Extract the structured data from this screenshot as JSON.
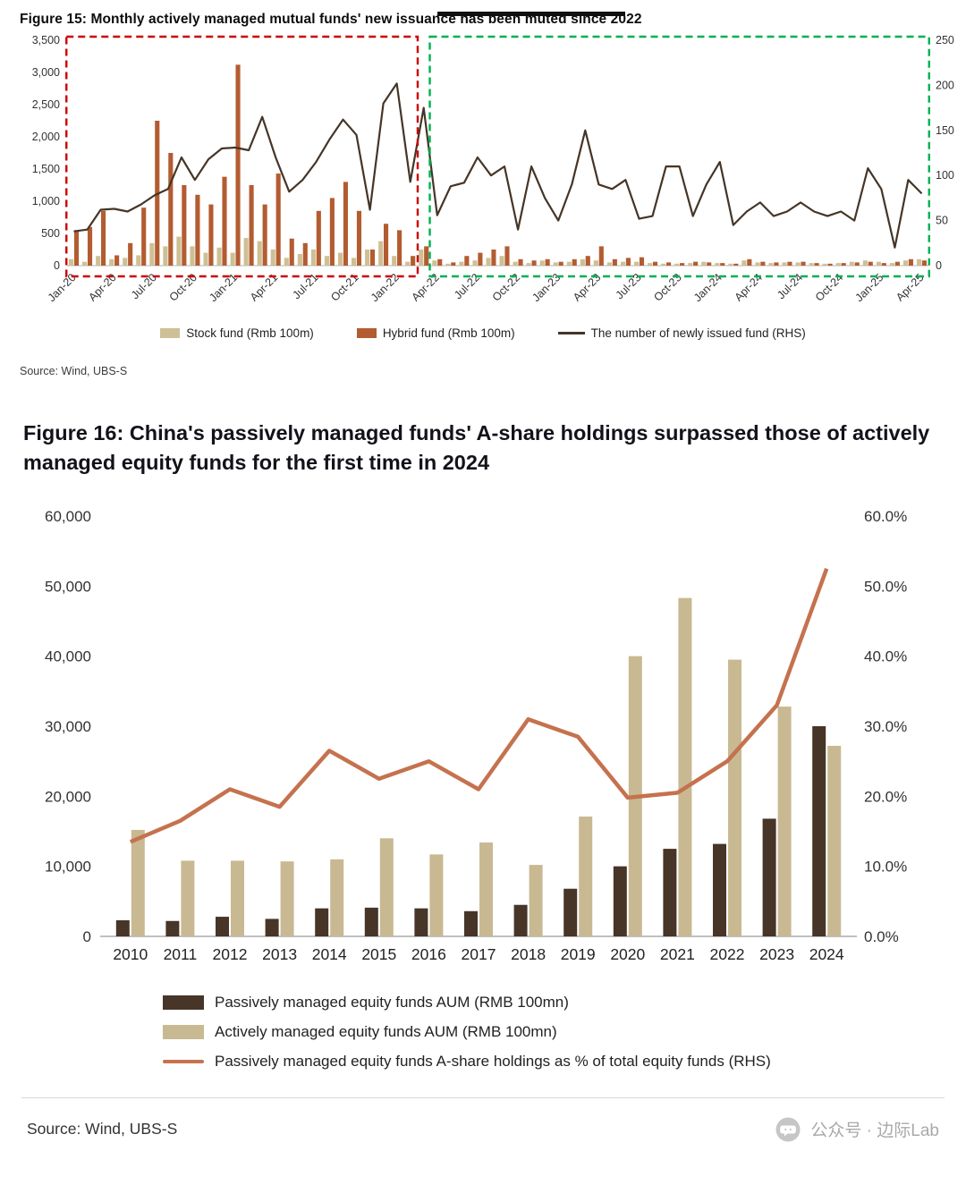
{
  "page": {
    "watermark_text": "公众号 · 边际Lab"
  },
  "fig15": {
    "title": "Figure 15: Monthly actively managed mutual funds' new issuance has been muted since 2022",
    "source": "Source: Wind, UBS-S"
  },
  "fig16": {
    "title": "Figure 16: China's passively managed funds' A-share holdings surpassed those of actively managed equity funds for the first time in 2024",
    "source": "Source: Wind, UBS-S"
  },
  "chart_data": [
    {
      "id": "fig15",
      "type": "bar+line",
      "title": "Figure 15: Monthly actively managed mutual funds' new issuance has been muted since 2022",
      "x": [
        "Jan-20",
        "Feb-20",
        "Mar-20",
        "Apr-20",
        "May-20",
        "Jun-20",
        "Jul-20",
        "Aug-20",
        "Sep-20",
        "Oct-20",
        "Nov-20",
        "Dec-20",
        "Jan-21",
        "Feb-21",
        "Mar-21",
        "Apr-21",
        "May-21",
        "Jun-21",
        "Jul-21",
        "Aug-21",
        "Sep-21",
        "Oct-21",
        "Nov-21",
        "Dec-21",
        "Jan-22",
        "Feb-22",
        "Mar-22",
        "Apr-22",
        "May-22",
        "Jun-22",
        "Jul-22",
        "Aug-22",
        "Sep-22",
        "Oct-22",
        "Nov-22",
        "Dec-22",
        "Jan-23",
        "Feb-23",
        "Mar-23",
        "Apr-23",
        "May-23",
        "Jun-23",
        "Jul-23",
        "Aug-23",
        "Sep-23",
        "Oct-23",
        "Nov-23",
        "Dec-23",
        "Jan-24",
        "Feb-24",
        "Mar-24",
        "Apr-24",
        "May-24",
        "Jun-24",
        "Jul-24",
        "Aug-24",
        "Sep-24",
        "Oct-24",
        "Nov-24",
        "Dec-24",
        "Jan-25",
        "Feb-25",
        "Mar-25",
        "Apr-25"
      ],
      "x_tick_every": 3,
      "left_axis": {
        "min": 0,
        "max": 3500,
        "tick_step": 500
      },
      "right_axis": {
        "min": 0,
        "max": 250,
        "tick_step": 50
      },
      "series": [
        {
          "name": "Stock fund (Rmb 100m)",
          "type": "bar",
          "axis": "left",
          "color": "#cec095",
          "values": [
            100,
            60,
            150,
            100,
            120,
            160,
            350,
            300,
            450,
            300,
            200,
            280,
            200,
            430,
            380,
            250,
            120,
            180,
            250,
            150,
            200,
            120,
            250,
            380,
            150,
            60,
            250,
            80,
            30,
            60,
            80,
            120,
            150,
            60,
            40,
            80,
            50,
            60,
            100,
            80,
            50,
            60,
            60,
            40,
            30,
            30,
            40,
            60,
            40,
            30,
            80,
            50,
            40,
            50,
            50,
            40,
            30,
            40,
            60,
            80,
            60,
            40,
            80,
            100
          ]
        },
        {
          "name": "Hybrid fund (Rmb 100m)",
          "type": "bar",
          "axis": "left",
          "color": "#b35c31",
          "values": [
            550,
            600,
            850,
            160,
            350,
            900,
            2250,
            1750,
            1250,
            1100,
            950,
            1380,
            3120,
            1250,
            950,
            1430,
            420,
            350,
            850,
            1050,
            1300,
            850,
            250,
            650,
            550,
            150,
            300,
            100,
            50,
            150,
            200,
            250,
            300,
            100,
            80,
            100,
            60,
            100,
            150,
            300,
            100,
            120,
            130,
            60,
            50,
            40,
            60,
            50,
            40,
            30,
            100,
            60,
            50,
            60,
            60,
            40,
            30,
            40,
            50,
            60,
            40,
            60,
            100,
            80
          ]
        },
        {
          "name": "The number of newly issued fund (RHS)",
          "type": "line",
          "axis": "right",
          "color": "#453527",
          "values": [
            38,
            40,
            62,
            63,
            60,
            68,
            78,
            85,
            120,
            95,
            118,
            130,
            131,
            128,
            165,
            120,
            82,
            95,
            115,
            140,
            162,
            145,
            62,
            180,
            202,
            93,
            175,
            56,
            88,
            92,
            120,
            100,
            110,
            40,
            110,
            75,
            50,
            90,
            150,
            90,
            85,
            95,
            52,
            55,
            110,
            110,
            55,
            90,
            115,
            45,
            60,
            70,
            55,
            60,
            70,
            60,
            55,
            60,
            50,
            108,
            85,
            20,
            95,
            80
          ]
        }
      ],
      "annotations": [
        {
          "type": "dashed-box",
          "color": "#cc0000",
          "from_month": "Jan-20",
          "to_month": "Feb-22"
        },
        {
          "type": "dashed-box",
          "color": "#00b050",
          "from_month": "Apr-22",
          "to_month": "Apr-25"
        }
      ]
    },
    {
      "id": "fig16",
      "type": "bar+line",
      "title": "Figure 16: China's passively managed funds' A-share holdings surpassed those of actively managed equity funds for the first time in 2024",
      "categories": [
        "2010",
        "2011",
        "2012",
        "2013",
        "2014",
        "2015",
        "2016",
        "2017",
        "2018",
        "2019",
        "2020",
        "2021",
        "2022",
        "2023",
        "2024"
      ],
      "left_axis": {
        "min": 0,
        "max": 60000,
        "tick_step": 10000
      },
      "right_axis": {
        "min": 0,
        "max": 60,
        "tick_step": 10,
        "format": "percent1"
      },
      "series": [
        {
          "name": "Passively managed equity funds AUM (RMB 100mn)",
          "type": "bar",
          "axis": "left",
          "color": "#473528",
          "values": [
            2300,
            2200,
            2800,
            2500,
            4000,
            4100,
            4000,
            3600,
            4500,
            6800,
            10000,
            12500,
            13200,
            16800,
            30000
          ]
        },
        {
          "name": "Actively managed equity funds AUM (RMB 100mn)",
          "type": "bar",
          "axis": "left",
          "color": "#c8b992",
          "values": [
            15200,
            10800,
            10800,
            10700,
            11000,
            14000,
            11700,
            13400,
            10200,
            17100,
            40000,
            48300,
            39500,
            32800,
            27200
          ]
        },
        {
          "name": "Passively managed equity funds A-share holdings as % of total equity funds (RHS)",
          "type": "line",
          "axis": "right",
          "color": "#c5724e",
          "values": [
            13.5,
            16.5,
            21.0,
            18.5,
            26.5,
            22.5,
            25.0,
            21.0,
            31.0,
            28.5,
            19.8,
            20.5,
            25.0,
            33.0,
            52.5
          ]
        }
      ]
    }
  ]
}
